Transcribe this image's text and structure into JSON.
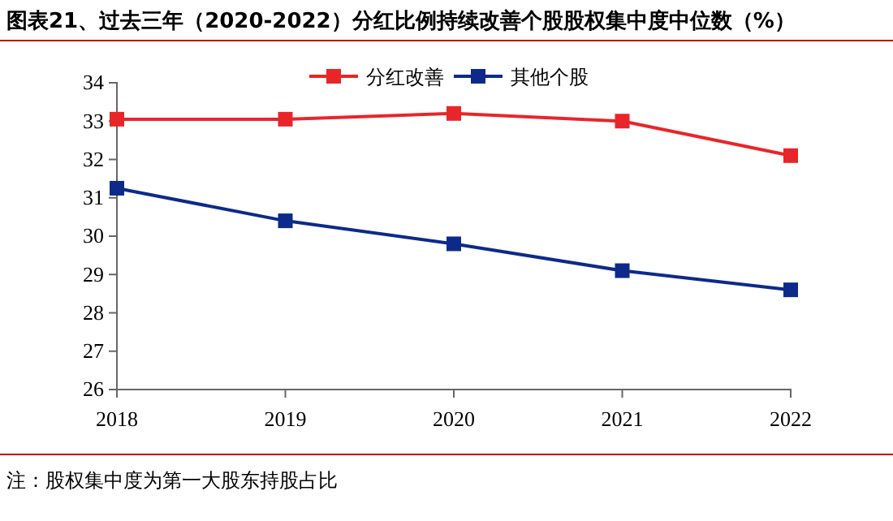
{
  "chart_data": {
    "type": "line",
    "title": "图表21、过去三年（2020-2022）分红比例持续改善个股股权集中度中位数（%）",
    "categories": [
      "2018",
      "2019",
      "2020",
      "2021",
      "2022"
    ],
    "series": [
      {
        "name": "分红改善",
        "color": "#e8262a",
        "values": [
          33.05,
          33.05,
          33.2,
          33.0,
          32.1
        ]
      },
      {
        "name": "其他个股",
        "color": "#0d2a8a",
        "values": [
          31.25,
          30.4,
          29.8,
          29.1,
          28.6
        ]
      }
    ],
    "ylim": [
      26,
      34
    ],
    "yticks": [
      26,
      27,
      28,
      29,
      30,
      31,
      32,
      33,
      34
    ],
    "grid": false,
    "legend": "top",
    "marker": "square",
    "line_style": "solid",
    "annotations": [
      "注：股权集中度为第一大股东持股占比"
    ]
  }
}
